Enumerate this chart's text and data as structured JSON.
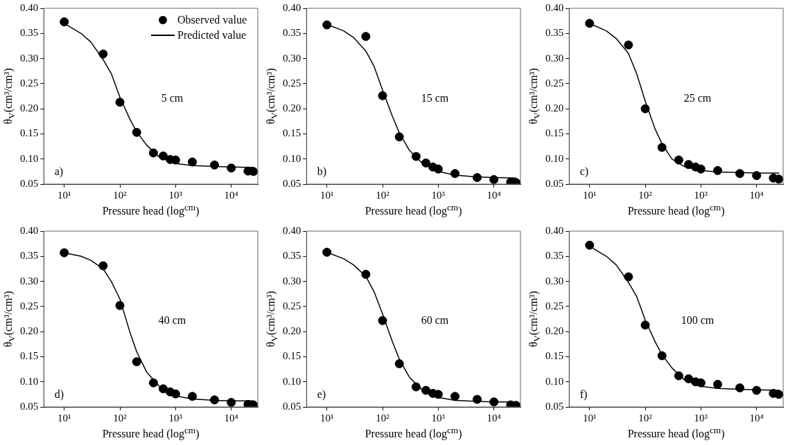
{
  "chart_data": [
    {
      "type": "scatter",
      "xlabel": "Pressure head (log$^{cm}$)",
      "ylabel": "θ$_{V}$(cm³/cm³)",
      "annotations": [
        "5 cm",
        "a)"
      ],
      "log": "x",
      "legend": "top right",
      "xlim": [
        4.3,
        30000
      ],
      "xticks": [
        {
          "value": 10,
          "label": "10¹"
        },
        {
          "value": 100,
          "label": "10²"
        },
        {
          "value": 1000,
          "label": "10³"
        },
        {
          "value": 10000,
          "label": "10⁴"
        }
      ],
      "ylim": [
        0.05,
        0.4
      ],
      "yticks": [
        0.05,
        {
          "value": 0.1,
          "label": "0.10"
        },
        0.15,
        {
          "value": 0.2,
          "label": "0.20"
        },
        0.25,
        {
          "value": 0.3,
          "label": "0.30"
        },
        0.35,
        {
          "value": 0.4,
          "label": "0.40"
        }
      ],
      "series": [
        {
          "name": "Observed value",
          "type": "scatter",
          "marker": "circle",
          "color": "#000000",
          "x": [
            10,
            50,
            100,
            200,
            400,
            600,
            800,
            1000,
            2000,
            5000,
            10000,
            20000,
            25000
          ],
          "values": [
            0.373,
            0.309,
            0.213,
            0.153,
            0.112,
            0.106,
            0.099,
            0.098,
            0.094,
            0.088,
            0.082,
            0.076,
            0.075
          ]
        },
        {
          "name": "Predicted value",
          "type": "line",
          "color": "#000000",
          "x": [
            10,
            20,
            30,
            50,
            70,
            100,
            150,
            200,
            300,
            500,
            1000,
            2000,
            5000,
            10000,
            25000
          ],
          "values": [
            0.37,
            0.35,
            0.333,
            0.298,
            0.27,
            0.223,
            0.18,
            0.154,
            0.128,
            0.104,
            0.091,
            0.087,
            0.085,
            0.084,
            0.083
          ]
        }
      ]
    },
    {
      "type": "scatter",
      "xlabel": "Pressure head (log$^{cm}$)",
      "ylabel": "θ$_{V}$(cm³/cm³)",
      "annotations": [
        "15 cm",
        "b)"
      ],
      "log": "x",
      "xlim": [
        4.3,
        30000
      ],
      "xticks": [
        {
          "value": 10,
          "label": "10¹"
        },
        {
          "value": 100,
          "label": "10²"
        },
        {
          "value": 1000,
          "label": "10³"
        },
        {
          "value": 10000,
          "label": "10⁴"
        }
      ],
      "ylim": [
        0.05,
        0.4
      ],
      "yticks": [
        0.05,
        {
          "value": 0.1,
          "label": "0.10"
        },
        0.15,
        {
          "value": 0.2,
          "label": "0.20"
        },
        0.25,
        {
          "value": 0.3,
          "label": "0.30"
        },
        0.35,
        {
          "value": 0.4,
          "label": "0.40"
        }
      ],
      "series": [
        {
          "type": "scatter",
          "marker": "circle",
          "color": "#000000",
          "x": [
            10,
            50,
            100,
            200,
            400,
            600,
            800,
            1000,
            2000,
            5000,
            10000,
            20000,
            25000
          ],
          "values": [
            0.367,
            0.344,
            0.226,
            0.144,
            0.105,
            0.092,
            0.084,
            0.08,
            0.071,
            0.063,
            0.059,
            0.054,
            0.053
          ]
        },
        {
          "type": "line",
          "color": "#000000",
          "x": [
            10,
            20,
            30,
            50,
            70,
            100,
            150,
            200,
            300,
            500,
            1000,
            2000,
            5000,
            10000,
            25000
          ],
          "values": [
            0.368,
            0.355,
            0.342,
            0.315,
            0.285,
            0.237,
            0.185,
            0.152,
            0.118,
            0.093,
            0.075,
            0.068,
            0.064,
            0.063,
            0.062
          ]
        }
      ]
    },
    {
      "type": "scatter",
      "xlabel": "Pressure head (log$^{cm}$)",
      "ylabel": "θ$_{V}$(cm³/cm³)",
      "annotations": [
        "25 cm",
        "c)"
      ],
      "log": "x",
      "xlim": [
        4.3,
        30000
      ],
      "xticks": [
        {
          "value": 10,
          "label": "10¹"
        },
        {
          "value": 100,
          "label": "10²"
        },
        {
          "value": 1000,
          "label": "10³"
        },
        {
          "value": 10000,
          "label": "10⁴"
        }
      ],
      "ylim": [
        0.05,
        0.4
      ],
      "yticks": [
        0.05,
        {
          "value": 0.1,
          "label": "0.10"
        },
        0.15,
        {
          "value": 0.2,
          "label": "0.20"
        },
        0.25,
        {
          "value": 0.3,
          "label": "0.30"
        },
        0.35,
        {
          "value": 0.4,
          "label": "0.40"
        }
      ],
      "series": [
        {
          "type": "scatter",
          "marker": "circle",
          "color": "#000000",
          "x": [
            10,
            50,
            100,
            200,
            400,
            600,
            800,
            1000,
            2000,
            5000,
            10000,
            20000,
            25000
          ],
          "values": [
            0.37,
            0.327,
            0.2,
            0.123,
            0.098,
            0.089,
            0.084,
            0.08,
            0.077,
            0.071,
            0.067,
            0.062,
            0.06
          ]
        },
        {
          "type": "line",
          "color": "#000000",
          "x": [
            10,
            20,
            30,
            50,
            70,
            100,
            150,
            200,
            300,
            500,
            1000,
            2000,
            5000,
            10000,
            25000
          ],
          "values": [
            0.37,
            0.355,
            0.34,
            0.31,
            0.27,
            0.215,
            0.16,
            0.13,
            0.1,
            0.085,
            0.077,
            0.074,
            0.073,
            0.072,
            0.072
          ]
        }
      ]
    },
    {
      "type": "scatter",
      "xlabel": "Pressure head (log$^{cm}$)",
      "ylabel": "θ$_{V}$(cm³/cm³)",
      "annotations": [
        "40 cm",
        "d)"
      ],
      "log": "x",
      "xlim": [
        4.3,
        30000
      ],
      "xticks": [
        {
          "value": 10,
          "label": "10¹"
        },
        {
          "value": 100,
          "label": "10²"
        },
        {
          "value": 1000,
          "label": "10³"
        },
        {
          "value": 10000,
          "label": "10⁴"
        }
      ],
      "ylim": [
        0.05,
        0.4
      ],
      "yticks": [
        0.05,
        {
          "value": 0.1,
          "label": "0.10"
        },
        0.15,
        {
          "value": 0.2,
          "label": "0.20"
        },
        0.25,
        {
          "value": 0.3,
          "label": "0.30"
        },
        0.35,
        {
          "value": 0.4,
          "label": "0.40"
        }
      ],
      "series": [
        {
          "type": "scatter",
          "marker": "circle",
          "color": "#000000",
          "x": [
            10,
            50,
            100,
            200,
            400,
            600,
            800,
            1000,
            2000,
            5000,
            10000,
            20000,
            25000
          ],
          "values": [
            0.357,
            0.331,
            0.252,
            0.14,
            0.098,
            0.086,
            0.08,
            0.076,
            0.071,
            0.064,
            0.059,
            0.055,
            0.054
          ]
        },
        {
          "type": "line",
          "color": "#000000",
          "x": [
            10,
            20,
            30,
            50,
            70,
            100,
            150,
            200,
            300,
            500,
            1000,
            2000,
            5000,
            10000,
            25000
          ],
          "values": [
            0.357,
            0.35,
            0.342,
            0.325,
            0.3,
            0.265,
            0.2,
            0.16,
            0.12,
            0.092,
            0.072,
            0.066,
            0.063,
            0.062,
            0.062
          ]
        }
      ]
    },
    {
      "type": "scatter",
      "xlabel": "Pressure head (log$^{cm}$)",
      "ylabel": "θ$_{V}$(cm³/cm³)",
      "annotations": [
        "60 cm",
        "e)"
      ],
      "log": "x",
      "xlim": [
        4.3,
        30000
      ],
      "xticks": [
        {
          "value": 10,
          "label": "10¹"
        },
        {
          "value": 100,
          "label": "10²"
        },
        {
          "value": 1000,
          "label": "10³"
        },
        {
          "value": 10000,
          "label": "10⁴"
        }
      ],
      "ylim": [
        0.05,
        0.4
      ],
      "yticks": [
        0.05,
        {
          "value": 0.1,
          "label": "0.10"
        },
        0.15,
        {
          "value": 0.2,
          "label": "0.20"
        },
        0.25,
        {
          "value": 0.3,
          "label": "0.30"
        },
        0.35,
        {
          "value": 0.4,
          "label": "0.40"
        }
      ],
      "series": [
        {
          "type": "scatter",
          "marker": "circle",
          "color": "#000000",
          "x": [
            10,
            50,
            100,
            200,
            400,
            600,
            800,
            1000,
            2000,
            5000,
            10000,
            20000,
            25000
          ],
          "values": [
            0.358,
            0.314,
            0.222,
            0.136,
            0.09,
            0.083,
            0.077,
            0.075,
            0.071,
            0.065,
            0.06,
            0.054,
            0.053
          ]
        },
        {
          "type": "line",
          "color": "#000000",
          "x": [
            10,
            20,
            30,
            50,
            70,
            100,
            150,
            200,
            300,
            500,
            1000,
            2000,
            5000,
            10000,
            25000
          ],
          "values": [
            0.358,
            0.345,
            0.333,
            0.31,
            0.28,
            0.235,
            0.18,
            0.145,
            0.11,
            0.085,
            0.069,
            0.063,
            0.061,
            0.06,
            0.06
          ]
        }
      ]
    },
    {
      "type": "scatter",
      "xlabel": "Pressure head (log$^{cm}$)",
      "ylabel": "θ$_{V}$(cm³/cm³)",
      "annotations": [
        "100 cm",
        "f)"
      ],
      "log": "x",
      "xlim": [
        4.3,
        30000
      ],
      "xticks": [
        {
          "value": 10,
          "label": "10¹"
        },
        {
          "value": 100,
          "label": "10²"
        },
        {
          "value": 1000,
          "label": "10³"
        },
        {
          "value": 10000,
          "label": "10⁴"
        }
      ],
      "ylim": [
        0.05,
        0.4
      ],
      "yticks": [
        0.05,
        {
          "value": 0.1,
          "label": "0.10"
        },
        0.15,
        {
          "value": 0.2,
          "label": "0.20"
        },
        0.25,
        {
          "value": 0.3,
          "label": "0.30"
        },
        0.35,
        {
          "value": 0.4,
          "label": "0.40"
        }
      ],
      "series": [
        {
          "type": "scatter",
          "marker": "circle",
          "color": "#000000",
          "x": [
            10,
            50,
            100,
            200,
            400,
            600,
            800,
            1000,
            2000,
            5000,
            10000,
            20000,
            25000
          ],
          "values": [
            0.372,
            0.309,
            0.213,
            0.152,
            0.112,
            0.106,
            0.1,
            0.098,
            0.095,
            0.088,
            0.083,
            0.077,
            0.075
          ]
        },
        {
          "type": "line",
          "color": "#000000",
          "x": [
            10,
            20,
            30,
            50,
            70,
            100,
            150,
            200,
            300,
            500,
            1000,
            2000,
            5000,
            10000,
            25000
          ],
          "values": [
            0.37,
            0.35,
            0.333,
            0.298,
            0.27,
            0.223,
            0.18,
            0.154,
            0.128,
            0.104,
            0.091,
            0.087,
            0.085,
            0.084,
            0.083
          ]
        }
      ]
    }
  ]
}
